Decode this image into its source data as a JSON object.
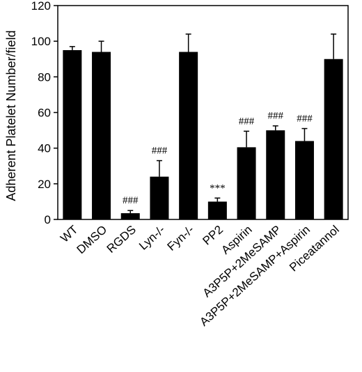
{
  "chart_data": {
    "type": "bar",
    "categories": [
      "WT",
      "DMSO",
      "RGDS",
      "Lyn-/-",
      "Fyn-/-",
      "PP2",
      "Aspirin",
      "A3P5P+2MeSAMP",
      "A3P5P+2MeSAMP+Aspirin",
      "Piceatannol"
    ],
    "values": [
      95,
      94,
      3.5,
      24,
      94,
      10,
      40.5,
      50,
      44,
      90
    ],
    "errors": [
      2,
      6,
      1.5,
      9,
      10,
      2,
      9,
      2.5,
      7,
      14
    ],
    "annotations": [
      "",
      "",
      "###",
      "###",
      "",
      "***",
      "###",
      "###",
      "###",
      ""
    ],
    "title": "",
    "xlabel": "",
    "ylabel": "Adherent Platelet Number/field",
    "ylim": [
      0,
      120
    ],
    "yticks": [
      "0",
      "20",
      "40",
      "60",
      "80",
      "100",
      "120"
    ],
    "grid": false,
    "bar_color": "#000000"
  }
}
